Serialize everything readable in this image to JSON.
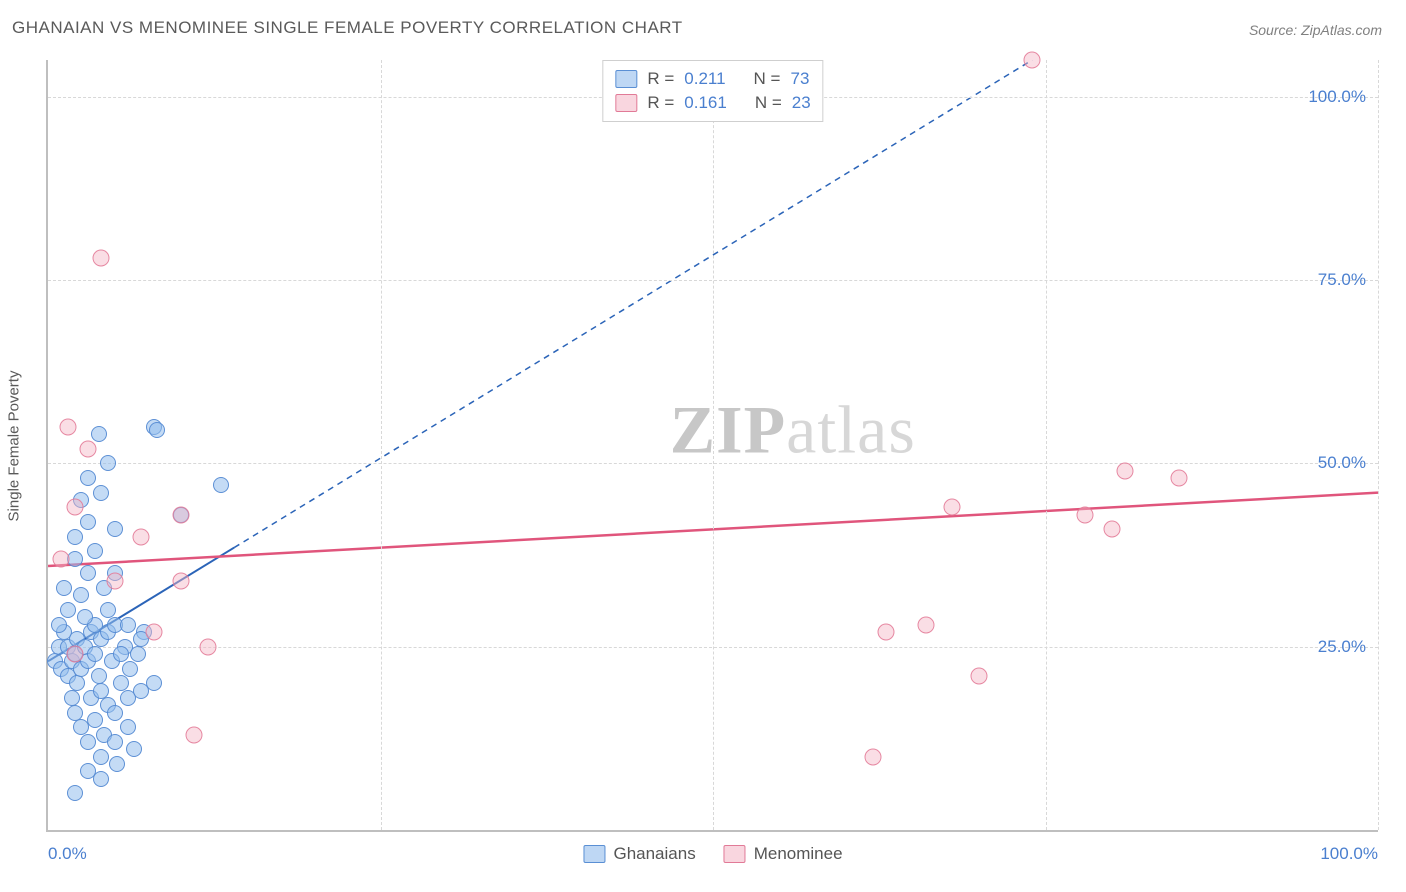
{
  "title": "GHANAIAN VS MENOMINEE SINGLE FEMALE POVERTY CORRELATION CHART",
  "source": "Source: ZipAtlas.com",
  "ylabel": "Single Female Poverty",
  "watermark_bold": "ZIP",
  "watermark_rest": "atlas",
  "chart": {
    "type": "scatter",
    "xlim": [
      0,
      100
    ],
    "ylim": [
      0,
      105
    ],
    "gridlines_y": [
      25,
      50,
      75,
      100
    ],
    "gridlines_x": [
      25,
      50,
      75,
      100
    ],
    "ytick_labels": [
      "25.0%",
      "50.0%",
      "75.0%",
      "100.0%"
    ],
    "xtick_min": "0.0%",
    "xtick_max": "100.0%",
    "background_color": "#ffffff",
    "grid_color": "#d8d8d8",
    "axis_color": "#bfbfbf",
    "tick_font_color": "#4a7fcf",
    "series": [
      {
        "name": "Ghanaians",
        "color_fill": "rgba(147,189,237,0.55)",
        "color_stroke": "#5a8fd4",
        "marker_size": 14,
        "R": 0.211,
        "N": 73,
        "trend": {
          "x1": 0,
          "y1": 23,
          "x2": 74,
          "y2": 105,
          "style": "solid-then-dashed",
          "dashed_from_x": 14,
          "color": "#2b64b8",
          "width": 2
        },
        "points": [
          [
            0.5,
            23
          ],
          [
            0.8,
            25
          ],
          [
            1,
            22
          ],
          [
            1.2,
            27
          ],
          [
            1.5,
            21
          ],
          [
            1.5,
            25
          ],
          [
            1.8,
            23
          ],
          [
            1.8,
            18
          ],
          [
            2,
            24
          ],
          [
            2,
            16
          ],
          [
            2.2,
            26
          ],
          [
            2.2,
            20
          ],
          [
            2.5,
            22
          ],
          [
            2.5,
            14
          ],
          [
            2.8,
            25
          ],
          [
            3,
            23
          ],
          [
            3,
            12
          ],
          [
            3.2,
            27
          ],
          [
            3.2,
            18
          ],
          [
            3.5,
            24
          ],
          [
            3.5,
            15
          ],
          [
            3.8,
            21
          ],
          [
            4,
            26
          ],
          [
            4,
            19
          ],
          [
            4.2,
            13
          ],
          [
            4.5,
            27
          ],
          [
            4.5,
            17
          ],
          [
            4.8,
            23
          ],
          [
            5,
            28
          ],
          [
            5,
            16
          ],
          [
            5.2,
            9
          ],
          [
            5.5,
            20
          ],
          [
            5.8,
            25
          ],
          [
            6,
            14
          ],
          [
            6,
            18
          ],
          [
            6.2,
            22
          ],
          [
            6.5,
            11
          ],
          [
            6.8,
            24
          ],
          [
            7,
            19
          ],
          [
            7.2,
            27
          ],
          [
            2,
            5
          ],
          [
            3,
            8
          ],
          [
            4,
            10
          ],
          [
            2.5,
            32
          ],
          [
            3,
            35
          ],
          [
            3.5,
            38
          ],
          [
            4.5,
            30
          ],
          [
            2,
            40
          ],
          [
            3,
            42
          ],
          [
            4,
            46
          ],
          [
            5,
            41
          ],
          [
            3,
            48
          ],
          [
            4.5,
            50
          ],
          [
            2.5,
            45
          ],
          [
            2,
            37
          ],
          [
            5,
            35
          ],
          [
            3.5,
            28
          ],
          [
            4.2,
            33
          ],
          [
            2.8,
            29
          ],
          [
            1.5,
            30
          ],
          [
            0.8,
            28
          ],
          [
            1.2,
            33
          ],
          [
            5.5,
            24
          ],
          [
            3.8,
            54
          ],
          [
            8,
            55
          ],
          [
            8.2,
            54.5
          ],
          [
            10,
            43
          ],
          [
            13,
            47
          ],
          [
            6,
            28
          ],
          [
            7,
            26
          ],
          [
            8,
            20
          ],
          [
            5,
            12
          ],
          [
            4,
            7
          ]
        ]
      },
      {
        "name": "Menominee",
        "color_fill": "rgba(244,181,197,0.45)",
        "color_stroke": "#e17a97",
        "marker_size": 15,
        "R": 0.161,
        "N": 23,
        "trend": {
          "x1": 0,
          "y1": 36,
          "x2": 100,
          "y2": 46,
          "style": "solid",
          "color": "#e0557c",
          "width": 2.5
        },
        "points": [
          [
            1,
            37
          ],
          [
            2,
            44
          ],
          [
            2,
            24
          ],
          [
            5,
            34
          ],
          [
            7,
            40
          ],
          [
            1.5,
            55
          ],
          [
            3,
            52
          ],
          [
            10,
            43
          ],
          [
            12,
            25
          ],
          [
            11,
            13
          ],
          [
            10,
            34
          ],
          [
            8,
            27
          ],
          [
            4,
            78
          ],
          [
            62,
            10
          ],
          [
            66,
            28
          ],
          [
            68,
            44
          ],
          [
            70,
            21
          ],
          [
            74,
            105
          ],
          [
            80,
            41
          ],
          [
            81,
            49
          ],
          [
            85,
            48
          ],
          [
            78,
            43
          ],
          [
            63,
            27
          ]
        ]
      }
    ]
  },
  "legend_top": [
    {
      "swatch": "blue",
      "r_label": "R =",
      "r_val": "0.211",
      "n_label": "N =",
      "n_val": "73"
    },
    {
      "swatch": "pink",
      "r_label": "R =",
      "r_val": "0.161",
      "n_label": "N =",
      "n_val": "23"
    }
  ],
  "legend_bottom": [
    {
      "swatch": "blue",
      "label": "Ghanaians"
    },
    {
      "swatch": "pink",
      "label": "Menominee"
    }
  ]
}
